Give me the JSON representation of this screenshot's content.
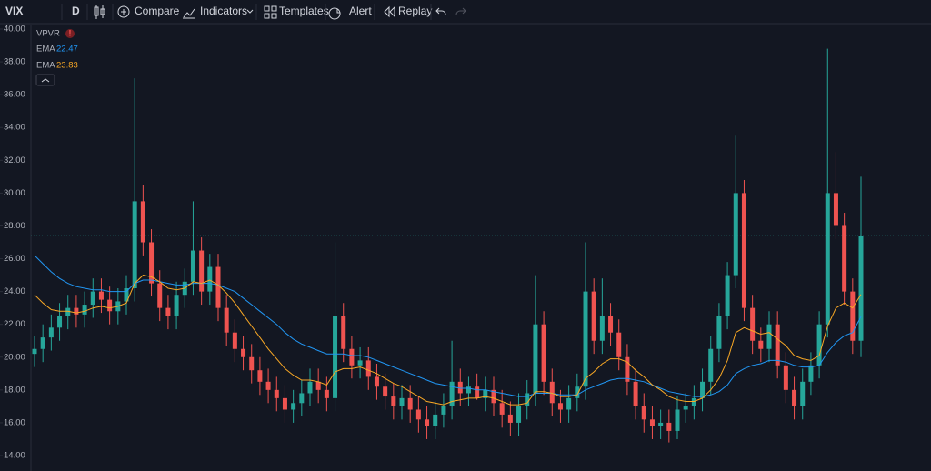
{
  "toolbar": {
    "symbol": "VIX",
    "interval": "D",
    "buttons": [
      "Compare",
      "Indicators",
      "Templates",
      "Alert",
      "Replay"
    ]
  },
  "legend": {
    "vpvr": "VPVR"
  },
  "chart_data": {
    "type": "candlestick",
    "open": [
      20.2,
      20.5,
      21.2,
      21.8,
      22.5,
      23.0,
      22.6,
      23.2,
      24.0,
      23.5,
      22.8,
      23.4,
      24.2,
      29.5,
      27.0,
      24.5,
      23.0,
      22.5,
      23.8,
      24.6,
      26.5,
      24.0,
      25.5,
      23.0,
      21.5,
      20.5,
      20.0,
      19.2,
      18.5,
      18.0,
      17.5,
      16.8,
      17.2,
      17.8,
      18.5,
      18.0,
      17.5,
      22.5,
      20.5,
      19.5,
      19.8,
      18.8,
      18.2,
      17.6,
      17.0,
      17.5,
      16.8,
      16.2,
      15.8,
      16.5,
      17.0,
      18.5,
      17.8,
      18.2,
      17.5,
      18.0,
      17.2,
      16.5,
      16.0,
      17.0,
      17.8,
      22.0,
      18.5,
      17.2,
      16.8,
      17.5,
      18.2,
      24.0,
      21.0,
      22.5,
      21.5,
      20.0,
      18.5,
      17.0,
      16.2,
      15.8,
      16.0,
      15.5,
      16.8,
      17.0,
      17.5,
      18.5,
      20.5,
      22.5,
      25.0,
      30.0,
      23.0,
      21.0,
      20.5,
      22.0,
      19.5,
      18.0,
      17.0,
      18.5,
      19.5,
      22.0,
      30.0,
      28.0,
      24.0,
      21.0
    ],
    "high": [
      21.3,
      22.0,
      22.6,
      23.3,
      23.8,
      23.8,
      24.0,
      24.8,
      24.8,
      24.3,
      24.2,
      25.0,
      37.0,
      30.5,
      27.8,
      25.3,
      23.8,
      24.6,
      25.4,
      29.5,
      27.3,
      26.3,
      26.3,
      23.8,
      22.3,
      21.3,
      20.8,
      20.0,
      19.3,
      18.8,
      18.3,
      18.0,
      18.6,
      19.3,
      19.3,
      18.8,
      27.0,
      23.3,
      21.3,
      20.6,
      20.6,
      19.6,
      19.0,
      18.4,
      18.3,
      18.3,
      17.6,
      17.0,
      17.3,
      17.8,
      21.0,
      19.3,
      18.8,
      19.0,
      18.8,
      18.8,
      18.0,
      17.3,
      17.8,
      18.6,
      25.0,
      22.8,
      19.3,
      18.0,
      18.3,
      19.0,
      27.0,
      24.8,
      24.8,
      23.3,
      22.3,
      20.8,
      19.3,
      17.8,
      17.0,
      16.8,
      16.8,
      17.6,
      17.8,
      18.3,
      19.3,
      21.3,
      23.3,
      25.8,
      33.5,
      30.8,
      23.8,
      21.8,
      22.8,
      22.8,
      20.3,
      18.8,
      19.3,
      20.3,
      22.8,
      38.8,
      32.5,
      28.8,
      24.8,
      31.0
    ],
    "low": [
      19.4,
      19.7,
      20.4,
      21.0,
      21.7,
      21.8,
      21.8,
      22.4,
      22.7,
      22.0,
      22.0,
      22.6,
      23.4,
      26.2,
      23.7,
      22.2,
      21.7,
      21.7,
      23.0,
      23.8,
      23.2,
      23.2,
      22.2,
      20.7,
      19.7,
      19.2,
      18.4,
      17.7,
      17.2,
      16.7,
      16.0,
      16.0,
      16.4,
      17.0,
      17.2,
      16.7,
      16.7,
      19.7,
      18.7,
      18.7,
      18.0,
      17.4,
      16.8,
      16.2,
      16.2,
      16.0,
      15.4,
      15.0,
      15.0,
      15.7,
      16.2,
      17.0,
      17.0,
      17.4,
      16.7,
      16.4,
      15.7,
      15.2,
      15.2,
      16.2,
      17.0,
      17.7,
      16.4,
      16.0,
      16.0,
      16.7,
      17.4,
      20.2,
      20.2,
      20.7,
      19.2,
      17.7,
      16.2,
      15.4,
      15.0,
      15.0,
      14.8,
      15.0,
      16.0,
      16.2,
      16.7,
      17.7,
      19.7,
      21.7,
      24.2,
      22.2,
      20.2,
      19.7,
      19.7,
      18.7,
      17.2,
      16.2,
      16.2,
      17.7,
      18.7,
      21.2,
      27.2,
      23.2,
      20.2,
      20.0
    ],
    "close": [
      20.5,
      21.2,
      21.8,
      22.5,
      23.0,
      22.6,
      23.2,
      24.0,
      23.5,
      22.8,
      23.4,
      24.2,
      29.5,
      27.0,
      24.5,
      23.0,
      22.5,
      23.8,
      24.6,
      26.5,
      24.0,
      25.5,
      23.0,
      21.5,
      20.5,
      20.0,
      19.2,
      18.5,
      18.0,
      17.5,
      16.8,
      17.2,
      17.8,
      18.5,
      18.0,
      17.5,
      22.5,
      20.5,
      19.5,
      19.8,
      18.8,
      18.2,
      17.6,
      17.0,
      17.5,
      16.8,
      16.2,
      15.8,
      16.5,
      17.0,
      18.5,
      17.8,
      18.2,
      17.5,
      18.0,
      17.2,
      16.5,
      16.0,
      17.0,
      17.8,
      22.0,
      18.5,
      17.2,
      16.8,
      17.5,
      18.2,
      24.0,
      21.0,
      22.5,
      21.5,
      20.0,
      18.5,
      17.0,
      16.2,
      15.8,
      16.0,
      15.5,
      16.8,
      17.0,
      17.5,
      18.5,
      20.5,
      22.5,
      25.0,
      30.0,
      23.0,
      21.0,
      20.5,
      22.0,
      19.5,
      18.0,
      17.0,
      18.5,
      19.5,
      22.0,
      30.0,
      28.0,
      24.0,
      21.0,
      27.4
    ],
    "up_color": "#26a69a",
    "down_color": "#ef5350",
    "series": [
      {
        "name": "EMA",
        "color": "#2196f3",
        "last": 22.47,
        "values": [
          26.2,
          25.7,
          25.2,
          24.8,
          24.5,
          24.3,
          24.2,
          24.1,
          24.1,
          24.0,
          24.0,
          24.0,
          24.5,
          24.7,
          24.7,
          24.6,
          24.5,
          24.4,
          24.4,
          24.5,
          24.5,
          24.5,
          24.4,
          24.2,
          24.0,
          23.6,
          23.2,
          22.8,
          22.4,
          22.0,
          21.5,
          21.1,
          20.8,
          20.6,
          20.4,
          20.2,
          20.2,
          20.2,
          20.1,
          20.1,
          20.0,
          19.8,
          19.6,
          19.4,
          19.2,
          19.0,
          18.8,
          18.6,
          18.4,
          18.3,
          18.2,
          18.1,
          18.1,
          18.0,
          18.0,
          17.9,
          17.8,
          17.7,
          17.6,
          17.6,
          17.8,
          17.8,
          17.8,
          17.7,
          17.7,
          17.7,
          18.0,
          18.2,
          18.4,
          18.6,
          18.7,
          18.7,
          18.6,
          18.5,
          18.3,
          18.1,
          17.9,
          17.8,
          17.7,
          17.6,
          17.6,
          17.7,
          17.9,
          18.3,
          19.0,
          19.3,
          19.5,
          19.6,
          19.8,
          19.8,
          19.7,
          19.5,
          19.4,
          19.4,
          19.5,
          20.3,
          20.9,
          21.3,
          21.5,
          22.47
        ]
      },
      {
        "name": "EMA",
        "color": "#f9a825",
        "last": 23.83,
        "values": [
          23.8,
          23.3,
          22.9,
          22.8,
          22.8,
          22.7,
          22.8,
          23.0,
          23.1,
          23.0,
          23.1,
          23.3,
          24.5,
          25.0,
          24.9,
          24.6,
          24.2,
          24.1,
          24.2,
          24.6,
          24.5,
          24.7,
          24.4,
          23.9,
          23.3,
          22.6,
          21.9,
          21.2,
          20.5,
          19.9,
          19.3,
          18.9,
          18.6,
          18.6,
          18.5,
          18.3,
          19.1,
          19.3,
          19.3,
          19.4,
          19.2,
          19.0,
          18.7,
          18.4,
          18.2,
          17.9,
          17.6,
          17.3,
          17.2,
          17.1,
          17.3,
          17.4,
          17.5,
          17.5,
          17.6,
          17.5,
          17.3,
          17.1,
          17.1,
          17.2,
          17.9,
          17.9,
          17.8,
          17.6,
          17.6,
          17.7,
          18.7,
          19.1,
          19.6,
          19.9,
          19.9,
          19.7,
          19.2,
          18.8,
          18.3,
          18.0,
          17.6,
          17.4,
          17.3,
          17.3,
          17.5,
          18.0,
          18.7,
          19.8,
          21.5,
          21.8,
          21.6,
          21.4,
          21.5,
          21.1,
          20.7,
          20.1,
          19.9,
          19.8,
          20.1,
          21.9,
          23.0,
          23.3,
          23.0,
          23.83
        ]
      }
    ],
    "price_line": 27.4,
    "ylim": [
      14,
      40
    ],
    "yticks": [
      {
        "value": 14,
        "label": "14.00"
      },
      {
        "value": 16,
        "label": "16.00"
      },
      {
        "value": 18,
        "label": "18.00"
      },
      {
        "value": 20,
        "label": "20.00"
      },
      {
        "value": 22,
        "label": "22.00"
      },
      {
        "value": 24,
        "label": "24.00"
      },
      {
        "value": 26,
        "label": "26.00"
      },
      {
        "value": 28,
        "label": "28.00"
      },
      {
        "value": 30,
        "label": "30.00"
      },
      {
        "value": 32,
        "label": "32.00"
      },
      {
        "value": 34,
        "label": "34.00"
      },
      {
        "value": 36,
        "label": "36.00"
      },
      {
        "value": 38,
        "label": "38.00"
      },
      {
        "value": 40,
        "label": "40.00"
      }
    ]
  }
}
